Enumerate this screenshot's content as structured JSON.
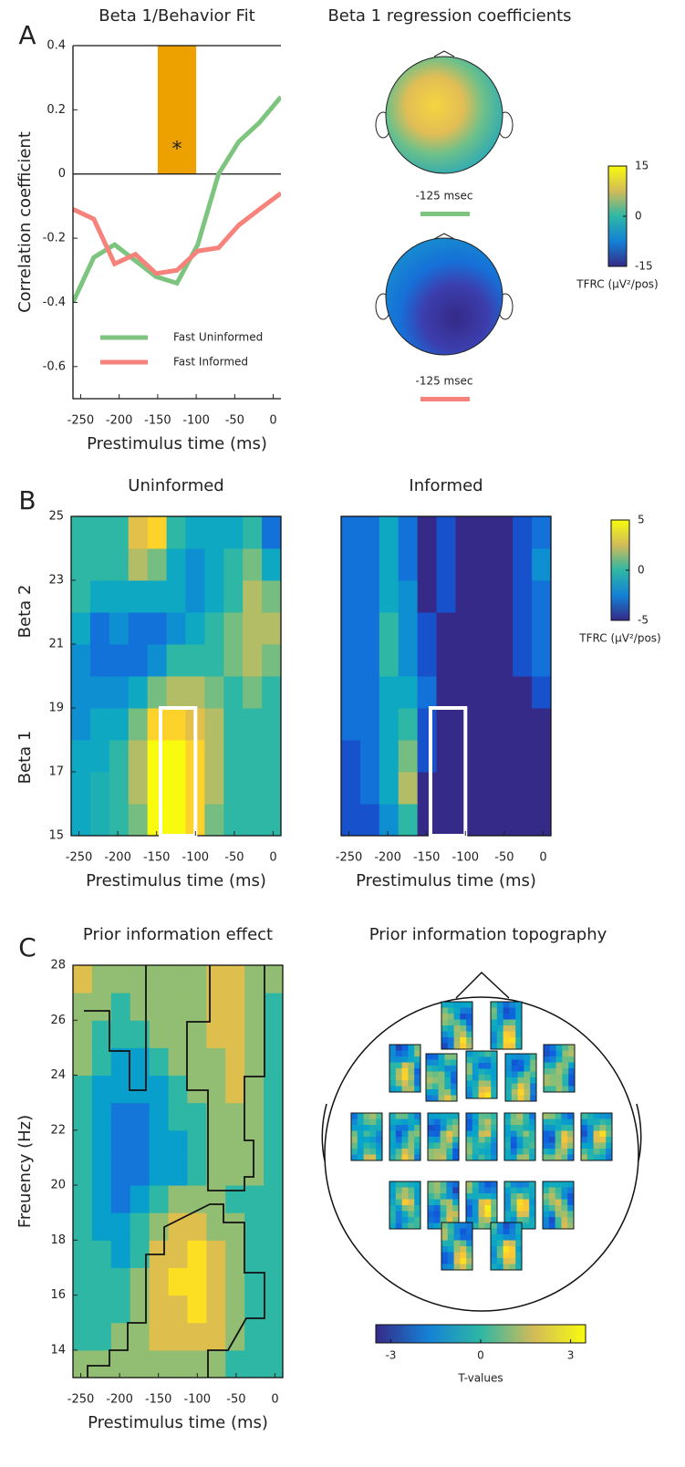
{
  "panels": [
    "A",
    "B",
    "C"
  ],
  "chart_data": [
    {
      "type": "line",
      "title": "Beta 1/Behavior Fit",
      "xlabel": "Prestimulus time (ms)",
      "ylabel": "Correlation coefficient",
      "x": [
        -260,
        -233,
        -206,
        -179,
        -152,
        -125,
        -98,
        -71,
        -45,
        -18,
        10
      ],
      "series": [
        {
          "name": "Fast Uninformed",
          "color": "#7dc47f",
          "values": [
            -0.4,
            -0.26,
            -0.22,
            -0.27,
            -0.32,
            -0.34,
            -0.22,
            0.0,
            0.1,
            0.16,
            0.24
          ]
        },
        {
          "name": "Fast Informed",
          "color": "#f7817b",
          "values": [
            -0.11,
            -0.14,
            -0.28,
            -0.25,
            -0.31,
            -0.3,
            -0.24,
            -0.23,
            -0.16,
            -0.11,
            -0.06
          ]
        }
      ],
      "xlim": [
        -260,
        10
      ],
      "ylim": [
        -0.7,
        0.4
      ],
      "xticks": [
        -250,
        -200,
        -150,
        -100,
        -50,
        0
      ],
      "yticks": [
        0.4,
        0.2,
        0,
        -0.2,
        -0.4,
        -0.6
      ],
      "highlight": {
        "x": [
          -150,
          -100
        ],
        "y": [
          0,
          0.4
        ],
        "color": "#eda100",
        "label": "*"
      },
      "legend": "lower left"
    },
    {
      "type": "heatmap",
      "title": "Uninformed",
      "xlabel": "Prestimulus time (ms)",
      "ylabels": [
        "Beta 2",
        "Beta 1"
      ],
      "xlim": [
        -260,
        10
      ],
      "ylim": [
        15,
        25
      ],
      "xticks": [
        -250,
        -200,
        -150,
        -100,
        -50,
        0
      ],
      "yticks": [
        15,
        17,
        19,
        21,
        23,
        25
      ],
      "zlim": [
        -5,
        5
      ],
      "highlight": {
        "x": [
          -145,
          -100
        ],
        "y": [
          15,
          19
        ]
      },
      "colorbar": {
        "ticks": [
          5,
          0,
          -5
        ],
        "label": "TFRC (μV²/pos)"
      },
      "z": [
        [
          -1,
          -0.5,
          0,
          1,
          5,
          5,
          4,
          1,
          0,
          0,
          0
        ],
        [
          -1,
          -0.5,
          0,
          2,
          5,
          5,
          4,
          2,
          0,
          0,
          0
        ],
        [
          -1,
          -1,
          0,
          2,
          5,
          5,
          4,
          2,
          0,
          0,
          0
        ],
        [
          -2,
          -1,
          -1,
          1,
          4,
          4,
          3,
          2,
          0,
          0,
          0
        ],
        [
          -2,
          -2,
          -2,
          -1,
          1,
          2,
          2,
          1,
          0,
          1,
          0
        ],
        [
          -2,
          -3,
          -3,
          -3,
          -2,
          0,
          0,
          0,
          1,
          2,
          1
        ],
        [
          -1,
          -3,
          -2,
          -3,
          -3,
          -2,
          -1,
          0,
          1,
          2,
          2
        ],
        [
          0,
          -1,
          -1,
          -1,
          -1,
          -1,
          -2,
          -1,
          0,
          2,
          1
        ],
        [
          0,
          0,
          0,
          2,
          1,
          -1,
          -2,
          -1,
          0,
          1,
          -1
        ],
        [
          0,
          0,
          0,
          3,
          4,
          0,
          -1,
          -1,
          -1,
          0,
          -3
        ]
      ]
    },
    {
      "type": "heatmap",
      "title": "Informed",
      "xlabel": "Prestimulus time (ms)",
      "xlim": [
        -260,
        10
      ],
      "ylim": [
        15,
        25
      ],
      "xticks": [
        -250,
        -200,
        -150,
        -100,
        -50,
        0
      ],
      "zlim": [
        -5,
        5
      ],
      "highlight": {
        "x": [
          -145,
          -100
        ],
        "y": [
          15,
          19
        ]
      },
      "z": [
        [
          -4,
          -4,
          -2,
          0,
          -5,
          -5,
          -5,
          -5,
          -5,
          -5,
          -5
        ],
        [
          -4,
          -3,
          -1,
          2,
          -5,
          -5,
          -5,
          -5,
          -5,
          -5,
          -5
        ],
        [
          -4,
          -3,
          -1,
          1,
          -4,
          -5,
          -5,
          -5,
          -5,
          -5,
          -5
        ],
        [
          -3,
          -3,
          -1,
          0,
          -4,
          -5,
          -5,
          -5,
          -5,
          -5,
          -5
        ],
        [
          -3,
          -3,
          -1,
          -1,
          -3,
          -5,
          -5,
          -5,
          -5,
          -5,
          -4
        ],
        [
          -3,
          -3,
          0,
          -2,
          -4,
          -5,
          -5,
          -5,
          -5,
          -4,
          -3
        ],
        [
          -3,
          -3,
          0,
          -2,
          -4,
          -5,
          -5,
          -5,
          -5,
          -4,
          -3
        ],
        [
          -3,
          -3,
          -1,
          -2,
          -5,
          -4,
          -5,
          -5,
          -5,
          -4,
          -3
        ],
        [
          -3,
          -3,
          -1,
          -3,
          -5,
          -4,
          -5,
          -5,
          -5,
          -4,
          -2
        ],
        [
          -3,
          -3,
          -1,
          -3,
          -5,
          -4,
          -5,
          -5,
          -5,
          -4,
          -3
        ]
      ]
    },
    {
      "type": "heatmap",
      "title": "Prior information effect",
      "xlabel": "Prestimulus time (ms)",
      "ylabel": "Freuency (Hz)",
      "xlim": [
        -260,
        10
      ],
      "ylim": [
        13,
        28
      ],
      "xticks": [
        -250,
        -200,
        -150,
        -100,
        -50,
        0
      ],
      "yticks": [
        14,
        16,
        18,
        20,
        22,
        24,
        26,
        28
      ],
      "zlim": [
        -3.5,
        3.5
      ],
      "colorbar": {
        "ticks": [
          -3,
          0,
          3
        ],
        "label": "T-values"
      },
      "z": [
        [
          1,
          1,
          1,
          1,
          1,
          1,
          1,
          1,
          0,
          0,
          0
        ],
        [
          0,
          0,
          1,
          1,
          2,
          2,
          2,
          2,
          1,
          0,
          0
        ],
        [
          0,
          0,
          0,
          1,
          2,
          2,
          3,
          2,
          1,
          0,
          0
        ],
        [
          0,
          0,
          0,
          1,
          2,
          3,
          3,
          2,
          1,
          0,
          0
        ],
        [
          0,
          0,
          -1,
          0,
          2,
          2,
          3,
          2,
          1,
          0,
          0
        ],
        [
          0,
          -1,
          -1,
          0,
          1,
          2,
          2,
          1,
          1,
          0,
          0
        ],
        [
          0,
          -1,
          -2,
          -1,
          0,
          1,
          1,
          1,
          0,
          0,
          0
        ],
        [
          0,
          -1,
          -2,
          -2,
          -1,
          -1,
          0,
          1,
          1,
          1,
          0
        ],
        [
          0,
          -1,
          -2,
          -2,
          -1,
          -1,
          0,
          1,
          1,
          1,
          0
        ],
        [
          0,
          -1,
          -2,
          -2,
          -1,
          0,
          0,
          1,
          1,
          1,
          0
        ],
        [
          0,
          -1,
          -1,
          -1,
          -1,
          0,
          1,
          1,
          2,
          1,
          0
        ],
        [
          1,
          0,
          -1,
          -1,
          0,
          1,
          1,
          1,
          2,
          1,
          0
        ],
        [
          1,
          0,
          0,
          0,
          1,
          1,
          1,
          2,
          2,
          1,
          0
        ],
        [
          1,
          1,
          0,
          1,
          1,
          1,
          1,
          2,
          2,
          1,
          0
        ],
        [
          2,
          1,
          1,
          1,
          1,
          1,
          1,
          2,
          2,
          1,
          1
        ]
      ]
    }
  ],
  "topomaps": {
    "title": "Beta 1 regression coefficients",
    "maps": [
      {
        "label": "-125 msec",
        "color": "#7dc47f"
      },
      {
        "label": "-125 msec",
        "color": "#f7817b"
      }
    ],
    "colorbar": {
      "lim": [
        -15,
        15
      ],
      "ticks": [
        15,
        0,
        -15
      ],
      "label": "TFRC (μV²/pos)"
    }
  },
  "topography": {
    "title": "Prior information topography"
  }
}
